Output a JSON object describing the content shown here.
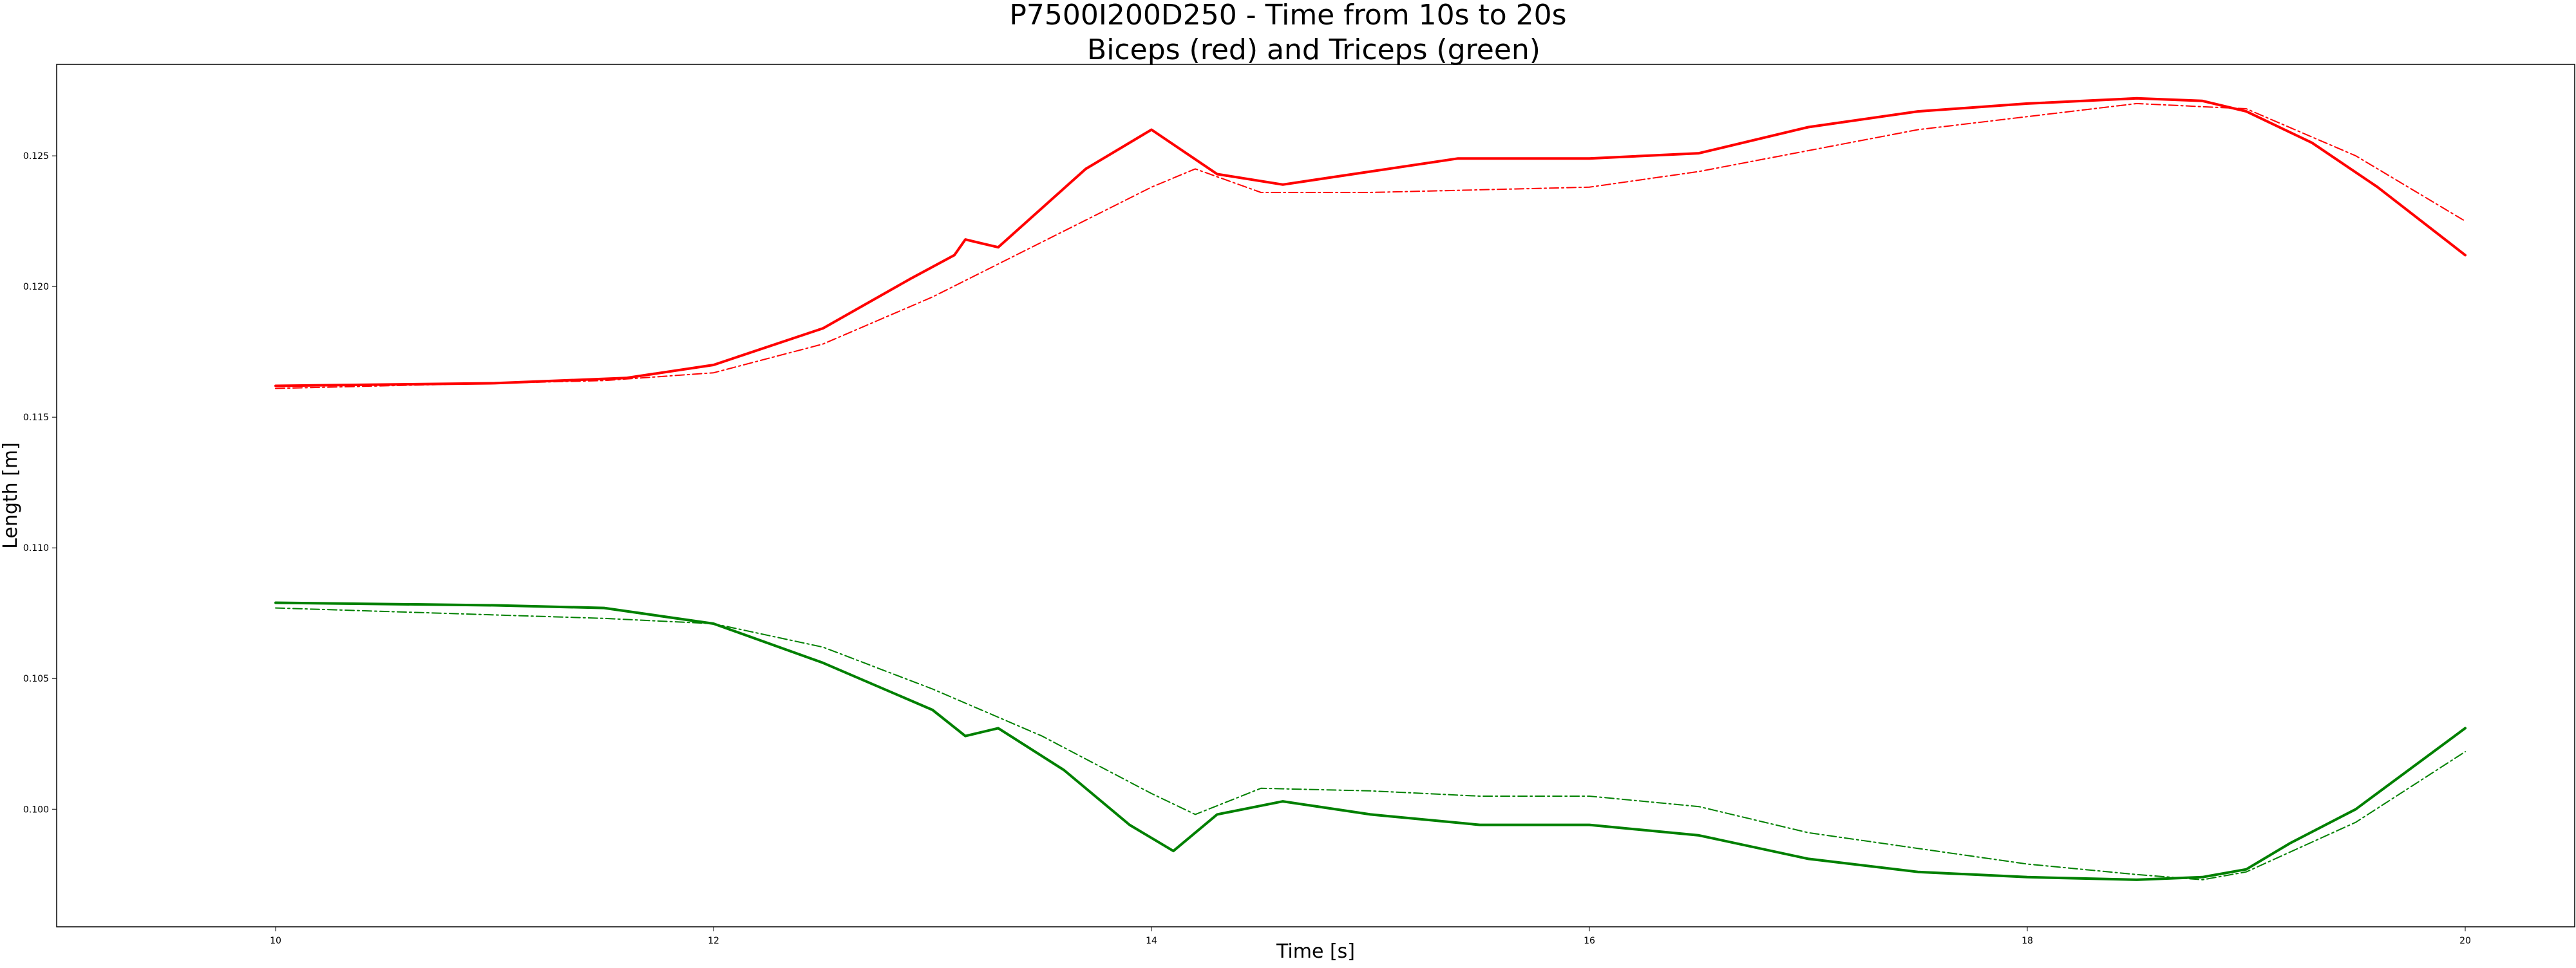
{
  "chart_data": {
    "type": "line",
    "title": "P7500I200D250 - Time from 10s to 20s",
    "subtitle": "Biceps (red) and Triceps (green)",
    "xlabel": "Time [s]",
    "ylabel": "Length [m]",
    "xlim": [
      9.0,
      20.5
    ],
    "ylim": [
      0.0955,
      0.1285
    ],
    "x_ticks": [
      10,
      12,
      14,
      16,
      18,
      20
    ],
    "x_tick_labels": [
      "10",
      "12",
      "14",
      "16",
      "18",
      "20"
    ],
    "y_ticks": [
      0.1,
      0.105,
      0.11,
      0.115,
      0.12,
      0.125
    ],
    "y_tick_labels": [
      "0.100",
      "0.105",
      "0.110",
      "0.115",
      "0.120",
      "0.125"
    ],
    "grid": false,
    "series": [
      {
        "color": "#ff0000",
        "style": "solid",
        "x": [
          10.0,
          11.0,
          11.6,
          12.0,
          12.5,
          12.9,
          13.1,
          13.15,
          13.3,
          13.7,
          14.0,
          14.3,
          14.6,
          15.0,
          15.4,
          16.0,
          16.5,
          17.0,
          17.5,
          18.0,
          18.5,
          18.8,
          19.0,
          19.3,
          19.6,
          20.0
        ],
        "y": [
          0.1162,
          0.1163,
          0.1165,
          0.117,
          0.1184,
          0.1203,
          0.1212,
          0.1218,
          0.1215,
          0.1245,
          0.126,
          0.1243,
          0.1239,
          0.1244,
          0.1249,
          0.1249,
          0.1251,
          0.1261,
          0.1267,
          0.127,
          0.1272,
          0.1271,
          0.1267,
          0.1255,
          0.1238,
          0.1212
        ]
      },
      {
        "color": "#ff0000",
        "style": "dashdot",
        "x": [
          10.0,
          11.5,
          12.0,
          12.5,
          13.0,
          13.5,
          14.0,
          14.2,
          14.5,
          15.0,
          16.0,
          16.5,
          17.0,
          17.5,
          18.0,
          18.5,
          19.0,
          19.5,
          20.0
        ],
        "y": [
          0.1161,
          0.1164,
          0.1167,
          0.1178,
          0.1196,
          0.1217,
          0.1238,
          0.1245,
          0.1236,
          0.1236,
          0.1238,
          0.1244,
          0.1252,
          0.126,
          0.1265,
          0.127,
          0.1268,
          0.125,
          0.1225
        ]
      },
      {
        "color": "#008000",
        "style": "solid",
        "x": [
          10.0,
          11.0,
          11.5,
          12.0,
          12.5,
          13.0,
          13.15,
          13.3,
          13.6,
          13.9,
          14.1,
          14.3,
          14.6,
          15.0,
          15.5,
          16.0,
          16.5,
          17.0,
          17.5,
          18.0,
          18.5,
          18.8,
          19.0,
          19.2,
          19.5,
          20.0
        ],
        "y": [
          0.1079,
          0.1078,
          0.1077,
          0.1071,
          0.1056,
          0.1038,
          0.1028,
          0.1031,
          0.1015,
          0.0994,
          0.0984,
          0.0998,
          0.1003,
          0.0998,
          0.0994,
          0.0994,
          0.099,
          0.0981,
          0.0976,
          0.0974,
          0.0973,
          0.0974,
          0.0977,
          0.0987,
          0.1,
          0.1031
        ]
      },
      {
        "color": "#008000",
        "style": "dashdot",
        "x": [
          10.0,
          11.5,
          12.0,
          12.5,
          13.0,
          13.5,
          14.0,
          14.2,
          14.5,
          15.0,
          15.5,
          16.0,
          16.5,
          17.0,
          17.5,
          18.0,
          18.5,
          18.8,
          19.0,
          19.5,
          20.0
        ],
        "y": [
          0.1077,
          0.1073,
          0.1071,
          0.1062,
          0.1046,
          0.1028,
          0.1006,
          0.0998,
          0.1008,
          0.1007,
          0.1005,
          0.1005,
          0.1001,
          0.0991,
          0.0985,
          0.0979,
          0.0975,
          0.0973,
          0.0976,
          0.0995,
          0.1022
        ]
      }
    ]
  }
}
